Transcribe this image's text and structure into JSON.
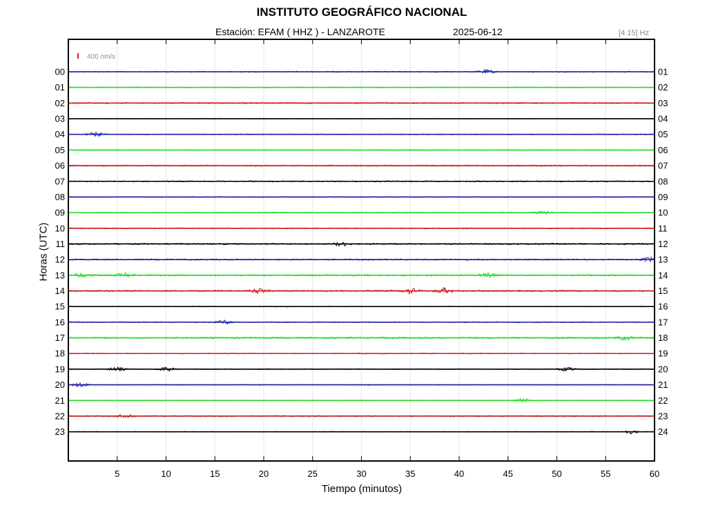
{
  "header": {
    "title": "INSTITUTO GEOGRÁFICO NACIONAL",
    "station": "Estación:  EFAM ( HHZ ) - LANZAROTE",
    "date": "2025-06-12",
    "filter": "[4 15] Hz"
  },
  "chart_data": {
    "type": "line",
    "title": "INSTITUTO GEOGRÁFICO NACIONAL",
    "xlabel": "Tiempo (minutos)",
    "ylabel": "Horas (UTC)",
    "xlim": [
      0,
      60
    ],
    "x_ticks": [
      5,
      10,
      15,
      20,
      25,
      30,
      35,
      40,
      45,
      50,
      55,
      60
    ],
    "grid": true,
    "scale_label": "400 nm/s",
    "scale_color": "#e0201e",
    "left_hour_labels": [
      "00",
      "01",
      "02",
      "03",
      "04",
      "05",
      "06",
      "07",
      "08",
      "09",
      "10",
      "11",
      "12",
      "13",
      "14",
      "15",
      "16",
      "17",
      "18",
      "19",
      "20",
      "21",
      "22",
      "23"
    ],
    "right_hour_labels": [
      "01",
      "02",
      "03",
      "04",
      "05",
      "06",
      "07",
      "08",
      "09",
      "10",
      "11",
      "12",
      "13",
      "14",
      "15",
      "16",
      "17",
      "18",
      "19",
      "20",
      "21",
      "22",
      "23",
      "24"
    ],
    "trace_colors": [
      "#1f1fa8",
      "#22dd22",
      "#cc1f1f",
      "#000000"
    ],
    "series": [
      {
        "hour": "00",
        "color": "#1f1fa8",
        "amplitude": 1.2,
        "events": [
          {
            "t": 42.8,
            "amp": 3
          }
        ]
      },
      {
        "hour": "01",
        "color": "#22dd22",
        "amplitude": 1.0,
        "events": []
      },
      {
        "hour": "02",
        "color": "#cc1f1f",
        "amplitude": 1.5,
        "events": []
      },
      {
        "hour": "03",
        "color": "#000000",
        "amplitude": 0.8,
        "events": []
      },
      {
        "hour": "04",
        "color": "#1f1fa8",
        "amplitude": 1.0,
        "events": [
          {
            "t": 2.8,
            "amp": 3
          }
        ]
      },
      {
        "hour": "05",
        "color": "#22dd22",
        "amplitude": 1.0,
        "events": []
      },
      {
        "hour": "06",
        "color": "#cc1f1f",
        "amplitude": 1.5,
        "events": []
      },
      {
        "hour": "07",
        "color": "#000000",
        "amplitude": 1.4,
        "events": []
      },
      {
        "hour": "08",
        "color": "#1f1fa8",
        "amplitude": 1.0,
        "events": []
      },
      {
        "hour": "09",
        "color": "#22dd22",
        "amplitude": 1.2,
        "events": [
          {
            "t": 48.5,
            "amp": 3
          }
        ]
      },
      {
        "hour": "10",
        "color": "#cc1f1f",
        "amplitude": 1.2,
        "events": []
      },
      {
        "hour": "11",
        "color": "#000000",
        "amplitude": 1.6,
        "events": [
          {
            "t": 28,
            "amp": 3
          }
        ]
      },
      {
        "hour": "12",
        "color": "#1f1fa8",
        "amplitude": 1.6,
        "events": [
          {
            "t": 59.5,
            "amp": 3
          }
        ]
      },
      {
        "hour": "13",
        "color": "#22dd22",
        "amplitude": 1.8,
        "events": [
          {
            "t": 1.5,
            "amp": 3
          },
          {
            "t": 5.8,
            "amp": 3
          },
          {
            "t": 43,
            "amp": 3
          }
        ]
      },
      {
        "hour": "14",
        "color": "#cc1f1f",
        "amplitude": 1.8,
        "events": [
          {
            "t": 19.5,
            "amp": 4
          },
          {
            "t": 35,
            "amp": 4
          },
          {
            "t": 38.5,
            "amp": 4
          }
        ]
      },
      {
        "hour": "15",
        "color": "#000000",
        "amplitude": 0.8,
        "events": []
      },
      {
        "hour": "16",
        "color": "#1f1fa8",
        "amplitude": 1.2,
        "events": [
          {
            "t": 16,
            "amp": 3
          }
        ]
      },
      {
        "hour": "17",
        "color": "#22dd22",
        "amplitude": 1.8,
        "events": [
          {
            "t": 57,
            "amp": 3
          }
        ]
      },
      {
        "hour": "18",
        "color": "#cc1f1f",
        "amplitude": 1.0,
        "events": []
      },
      {
        "hour": "19",
        "color": "#000000",
        "amplitude": 1.0,
        "events": [
          {
            "t": 5,
            "amp": 3
          },
          {
            "t": 10,
            "amp": 3
          },
          {
            "t": 51,
            "amp": 3
          }
        ]
      },
      {
        "hour": "20",
        "color": "#1f1fa8",
        "amplitude": 1.0,
        "events": [
          {
            "t": 1.2,
            "amp": 3
          }
        ]
      },
      {
        "hour": "21",
        "color": "#22dd22",
        "amplitude": 1.0,
        "events": [
          {
            "t": 46.5,
            "amp": 3
          }
        ]
      },
      {
        "hour": "22",
        "color": "#cc1f1f",
        "amplitude": 1.4,
        "events": [
          {
            "t": 6,
            "amp": 3
          }
        ]
      },
      {
        "hour": "23",
        "color": "#000000",
        "amplitude": 0.8,
        "events": [
          {
            "t": 57.5,
            "amp": 3
          }
        ]
      }
    ]
  }
}
